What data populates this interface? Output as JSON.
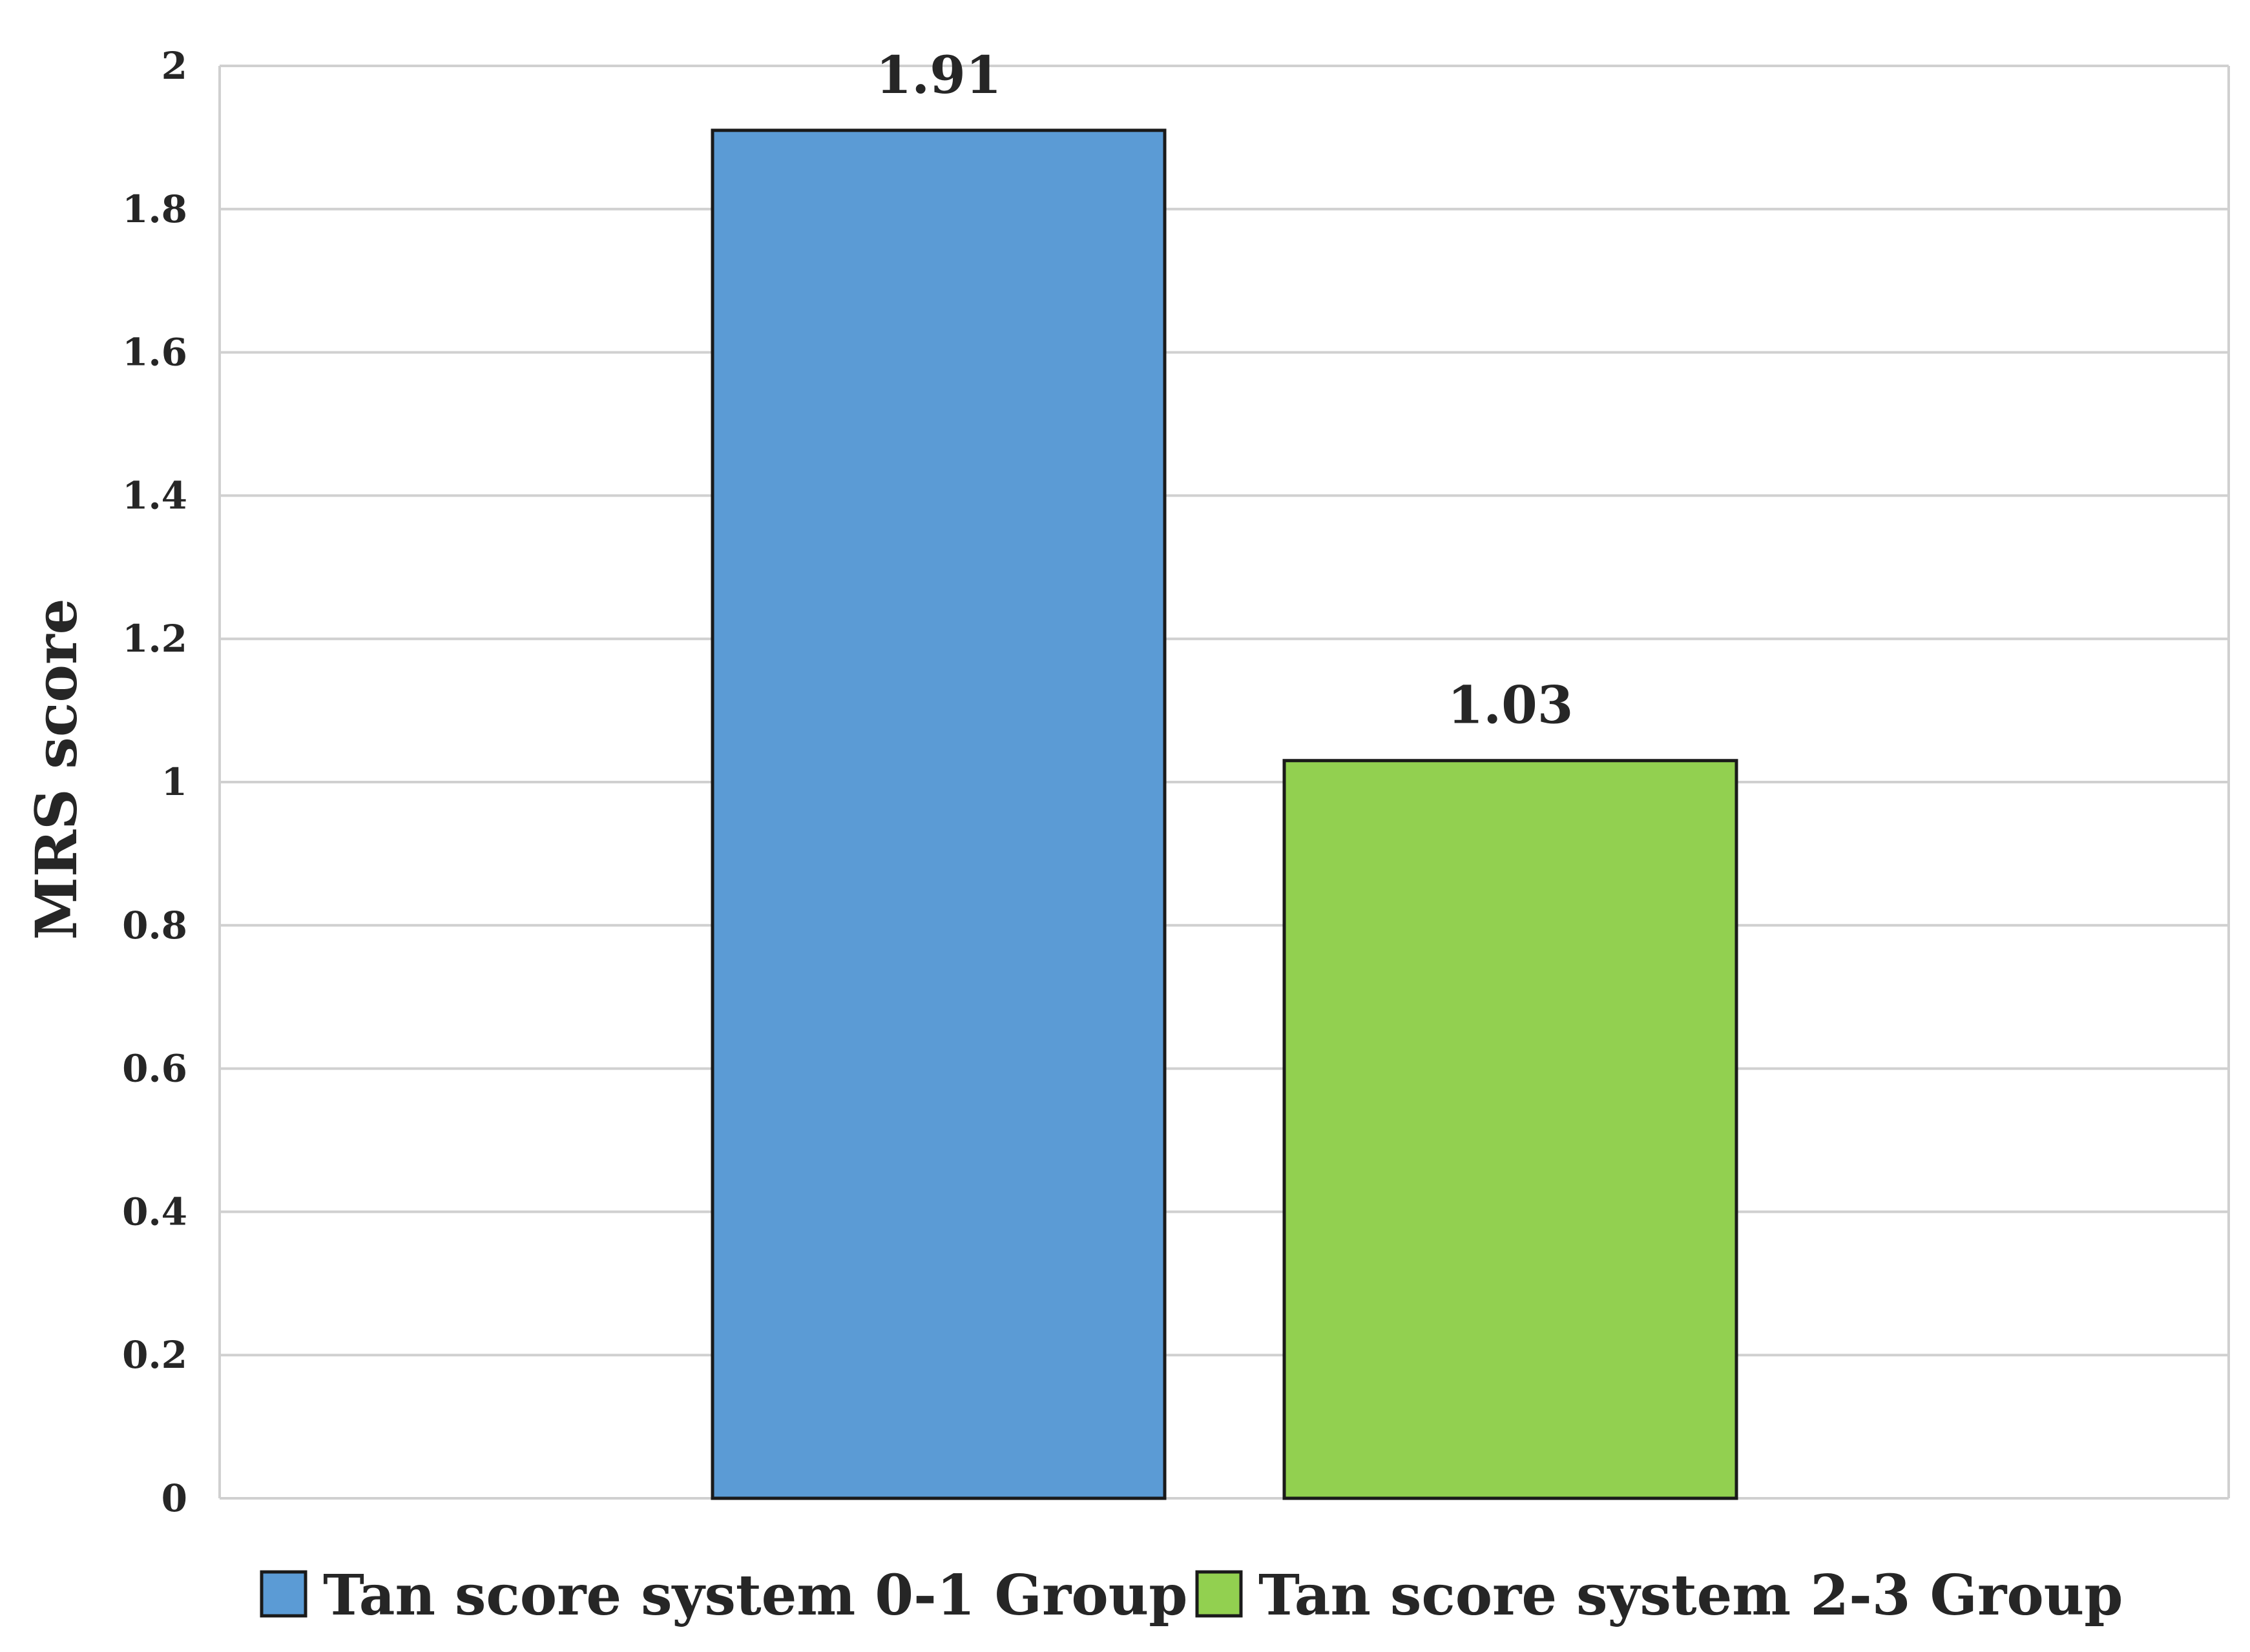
{
  "chart_data": {
    "type": "bar",
    "title": "",
    "xlabel": "",
    "ylabel": "MRS score",
    "ylim": [
      0,
      2
    ],
    "yticks": [
      0,
      0.2,
      0.4,
      0.6,
      0.8,
      1,
      1.2,
      1.4,
      1.6,
      1.8,
      2
    ],
    "ytick_labels": [
      "0",
      "0.2",
      "0.4",
      "0.6",
      "0.8",
      "1",
      "1.2",
      "1.4",
      "1.6",
      "1.8",
      "2"
    ],
    "grid": true,
    "legend_position": "bottom",
    "series": [
      {
        "name": "Tan score system 0-1 Group",
        "value": 1.91,
        "value_label": "1.91",
        "color": "#5b9bd5"
      },
      {
        "name": "Tan score system 2-3 Group",
        "value": 1.03,
        "value_label": "1.03",
        "color": "#92d050"
      }
    ]
  }
}
